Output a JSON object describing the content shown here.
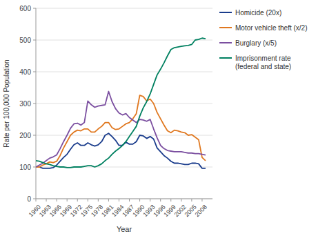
{
  "chart_data": {
    "type": "line",
    "xlabel": "Year",
    "ylabel": "Rate per 100,000 Population",
    "x": [
      1960,
      1961,
      1962,
      1963,
      1964,
      1965,
      1966,
      1967,
      1968,
      1969,
      1970,
      1971,
      1972,
      1973,
      1974,
      1975,
      1976,
      1977,
      1978,
      1979,
      1980,
      1981,
      1982,
      1983,
      1984,
      1985,
      1986,
      1987,
      1988,
      1989,
      1990,
      1991,
      1992,
      1993,
      1994,
      1995,
      1996,
      1997,
      1998,
      1999,
      2000,
      2001,
      2002,
      2003,
      2004,
      2005,
      2006,
      2007,
      2008,
      2009
    ],
    "series": [
      {
        "name": "Homicide (20x)",
        "color": "#1a3c8c",
        "values": [
          100,
          100,
          96,
          96,
          96,
          98,
          106,
          118,
          130,
          140,
          156,
          170,
          176,
          168,
          168,
          176,
          170,
          166,
          170,
          180,
          200,
          206,
          196,
          184,
          168,
          168,
          178,
          172,
          172,
          180,
          200,
          198,
          190,
          196,
          188,
          160,
          148,
          136,
          128,
          118,
          112,
          112,
          110,
          108,
          108,
          112,
          112,
          110,
          96,
          96
        ]
      },
      {
        "name": "Motor vehicle theft (x/2)",
        "color": "#e07820",
        "values": [
          100,
          100,
          106,
          110,
          116,
          114,
          118,
          136,
          160,
          180,
          200,
          210,
          216,
          214,
          220,
          220,
          210,
          210,
          220,
          228,
          240,
          240,
          224,
          218,
          220,
          228,
          236,
          240,
          252,
          268,
          326,
          322,
          308,
          314,
          300,
          272,
          252,
          232,
          214,
          208,
          216,
          214,
          210,
          208,
          200,
          202,
          194,
          186,
          130,
          120
        ]
      },
      {
        "name": "Burglary (x/5)",
        "color": "#7b4fa0",
        "values": [
          100,
          106,
          112,
          120,
          128,
          132,
          138,
          158,
          180,
          200,
          222,
          236,
          238,
          232,
          240,
          308,
          296,
          288,
          292,
          294,
          296,
          338,
          306,
          284,
          270,
          264,
          268,
          256,
          248,
          240,
          250,
          248,
          244,
          250,
          220,
          192,
          168,
          158,
          152,
          150,
          148,
          148,
          148,
          146,
          144,
          144,
          142,
          142,
          140,
          138
        ]
      },
      {
        "name": "Imprisonment rate\n(federal and state)",
        "color": "#008060",
        "values": [
          120,
          118,
          114,
          110,
          108,
          104,
          102,
          100,
          100,
          98,
          98,
          100,
          100,
          100,
          102,
          104,
          104,
          100,
          104,
          110,
          120,
          128,
          140,
          150,
          158,
          168,
          180,
          196,
          212,
          228,
          260,
          286,
          306,
          330,
          360,
          390,
          408,
          428,
          450,
          470,
          476,
          478,
          480,
          482,
          483,
          486,
          500,
          502,
          506,
          504
        ]
      }
    ],
    "xlim": [
      1960,
      2011
    ],
    "xticks": [
      1960,
      1963,
      1966,
      1969,
      1972,
      1975,
      1978,
      1981,
      1984,
      1987,
      1990,
      1993,
      1996,
      1999,
      2002,
      2005,
      2008
    ],
    "ylim": [
      0,
      600
    ],
    "yticks": [
      0,
      100,
      200,
      300,
      400,
      500,
      600
    ],
    "grid": true,
    "legend": "right"
  }
}
